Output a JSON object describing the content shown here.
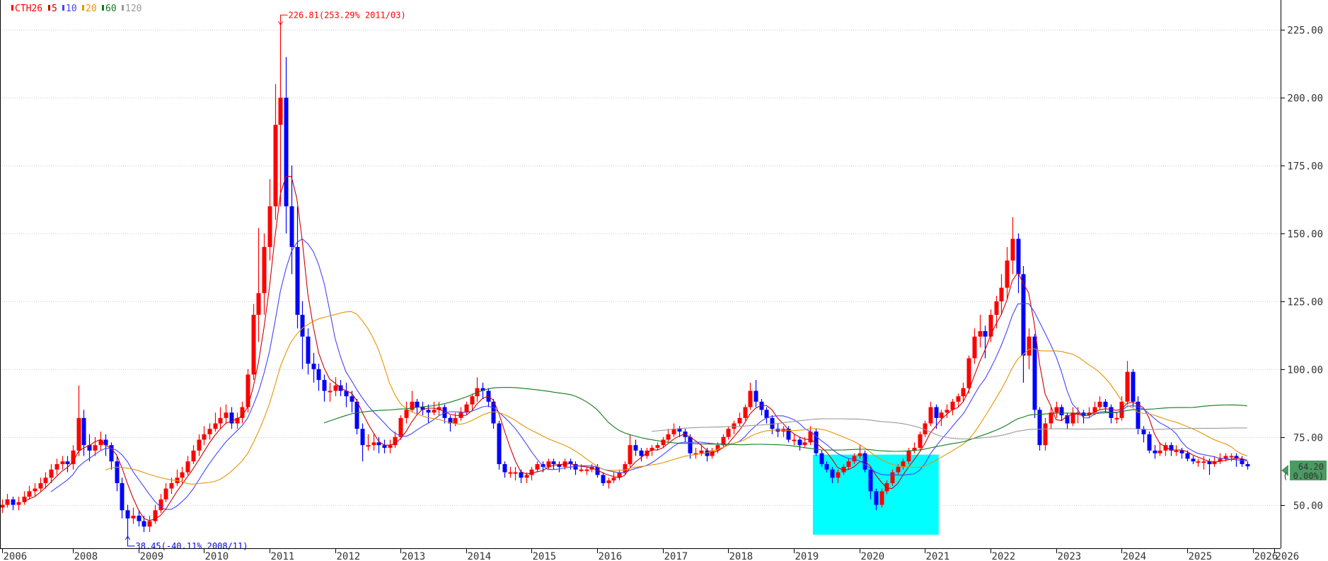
{
  "chart_data": {
    "type": "candlestick",
    "symbol": "CTH26",
    "interval": "monthly",
    "start": "2006/12",
    "up_color": "#ff0000",
    "down_color": "#0000ff",
    "legend": [
      {
        "label": "CTH26",
        "color": "#ff0000"
      },
      {
        "label": "5",
        "color": "#cc0000",
        "period": 5
      },
      {
        "label": "10",
        "color": "#4444ff",
        "period": 10
      },
      {
        "label": "20",
        "color": "#e69500",
        "period": 20
      },
      {
        "label": "60",
        "color": "#107a20",
        "period": 60
      },
      {
        "label": "120",
        "color": "#999999",
        "period": 120
      }
    ],
    "legend_placement": "top-left",
    "ylim": [
      34,
      236
    ],
    "y_ticks": [
      "225.00",
      "200.00",
      "175.00",
      "150.00",
      "125.00",
      "100.00",
      "75.00",
      "50.00"
    ],
    "x_ticks": [
      "2006",
      "2008",
      "2009",
      "2010",
      "2011",
      "2012",
      "2013",
      "2014",
      "2015",
      "2016",
      "2017",
      "2018",
      "2019",
      "2020",
      "2021",
      "2022",
      "2023",
      "2024",
      "2025",
      "2026",
      "2026"
    ],
    "grid": true,
    "annotations": {
      "high": {
        "text": "226.81(253.29% 2011/03)",
        "value": 226.81,
        "color": "#ff0000"
      },
      "low": {
        "text": "38.45(-40.11% 2008/11)",
        "value": 38.45,
        "color": "#0000ff"
      }
    },
    "highlight": {
      "from": "2019/05",
      "to": "2021/03",
      "ylim": [
        39,
        68.5
      ],
      "color": "#00ffff"
    },
    "last_price": {
      "value": "64.20",
      "change": "( 0.00%)",
      "color": "#4a9a62"
    },
    "ohlc": [
      [
        49,
        52,
        47,
        50
      ],
      [
        50,
        54,
        49,
        52
      ],
      [
        52,
        53,
        48,
        50
      ],
      [
        50,
        53,
        48,
        51
      ],
      [
        51,
        55,
        50,
        53
      ],
      [
        53,
        57,
        52,
        55
      ],
      [
        55,
        58,
        53,
        56
      ],
      [
        56,
        60,
        55,
        58
      ],
      [
        58,
        62,
        56,
        60
      ],
      [
        60,
        65,
        58,
        63
      ],
      [
        63,
        67,
        61,
        65
      ],
      [
        65,
        68,
        63,
        66
      ],
      [
        66,
        68,
        62,
        65
      ],
      [
        65,
        72,
        63,
        70
      ],
      [
        70,
        94,
        68,
        82
      ],
      [
        82,
        85,
        68,
        72
      ],
      [
        72,
        76,
        66,
        70
      ],
      [
        70,
        75,
        68,
        72
      ],
      [
        72,
        77,
        70,
        74
      ],
      [
        74,
        76,
        68,
        72
      ],
      [
        72,
        73,
        63,
        66
      ],
      [
        66,
        68,
        55,
        58
      ],
      [
        58,
        60,
        45,
        48
      ],
      [
        48,
        50,
        38.45,
        45
      ],
      [
        45,
        49,
        43,
        46
      ],
      [
        46,
        48,
        42,
        44
      ],
      [
        44,
        46,
        40,
        42
      ],
      [
        42,
        46,
        40,
        44
      ],
      [
        44,
        50,
        43,
        48
      ],
      [
        48,
        54,
        47,
        52
      ],
      [
        52,
        58,
        51,
        56
      ],
      [
        56,
        60,
        54,
        58
      ],
      [
        58,
        63,
        57,
        60
      ],
      [
        60,
        64,
        58,
        62
      ],
      [
        62,
        68,
        61,
        66
      ],
      [
        66,
        72,
        65,
        70
      ],
      [
        70,
        76,
        68,
        74
      ],
      [
        74,
        79,
        72,
        76
      ],
      [
        76,
        80,
        74,
        78
      ],
      [
        78,
        84,
        77,
        80
      ],
      [
        80,
        86,
        78,
        82
      ],
      [
        82,
        87,
        80,
        84
      ],
      [
        84,
        86,
        78,
        80
      ],
      [
        80,
        84,
        78,
        82
      ],
      [
        82,
        88,
        80,
        86
      ],
      [
        86,
        100,
        84,
        98
      ],
      [
        98,
        124,
        96,
        120
      ],
      [
        120,
        152,
        110,
        128
      ],
      [
        128,
        150,
        120,
        145
      ],
      [
        145,
        170,
        140,
        160
      ],
      [
        160,
        205,
        155,
        190
      ],
      [
        190,
        226.81,
        160,
        200
      ],
      [
        200,
        215,
        150,
        160
      ],
      [
        160,
        175,
        135,
        145
      ],
      [
        145,
        160,
        115,
        120
      ],
      [
        120,
        125,
        100,
        112
      ],
      [
        112,
        115,
        98,
        102
      ],
      [
        102,
        106,
        95,
        100
      ],
      [
        100,
        102,
        92,
        96
      ],
      [
        96,
        98,
        88,
        92
      ],
      [
        92,
        95,
        88,
        92
      ],
      [
        92,
        97,
        90,
        94
      ],
      [
        94,
        96,
        90,
        92
      ],
      [
        92,
        95,
        86,
        90
      ],
      [
        90,
        92,
        84,
        88
      ],
      [
        88,
        89,
        76,
        78
      ],
      [
        78,
        80,
        66,
        72
      ],
      [
        72,
        76,
        70,
        72
      ],
      [
        72,
        76,
        70,
        73
      ],
      [
        73,
        75,
        69,
        72
      ],
      [
        72,
        74,
        69,
        71
      ],
      [
        71,
        74,
        69,
        72
      ],
      [
        72,
        77,
        71,
        75
      ],
      [
        75,
        83,
        74,
        82
      ],
      [
        82,
        88,
        80,
        85
      ],
      [
        85,
        92,
        84,
        88
      ],
      [
        88,
        89,
        83,
        86
      ],
      [
        86,
        88,
        83,
        85
      ],
      [
        85,
        87,
        80,
        84
      ],
      [
        84,
        88,
        83,
        85
      ],
      [
        85,
        88,
        83,
        86
      ],
      [
        86,
        87,
        80,
        82
      ],
      [
        82,
        83,
        77,
        80
      ],
      [
        80,
        84,
        79,
        82
      ],
      [
        82,
        86,
        81,
        84
      ],
      [
        84,
        88,
        83,
        87
      ],
      [
        87,
        91,
        85,
        90
      ],
      [
        90,
        97,
        88,
        93
      ],
      [
        93,
        95,
        89,
        92
      ],
      [
        92,
        93,
        86,
        88
      ],
      [
        88,
        89,
        78,
        80
      ],
      [
        80,
        81,
        63,
        65
      ],
      [
        65,
        66,
        60,
        62
      ],
      [
        62,
        64,
        60,
        62
      ],
      [
        62,
        64,
        59,
        62
      ],
      [
        62,
        63,
        58,
        60
      ],
      [
        60,
        62,
        58,
        61
      ],
      [
        61,
        64,
        59,
        63
      ],
      [
        63,
        66,
        62,
        65
      ],
      [
        65,
        66,
        62,
        64
      ],
      [
        64,
        67,
        63,
        66
      ],
      [
        66,
        67,
        63,
        65
      ],
      [
        65,
        66,
        62,
        64
      ],
      [
        64,
        67,
        63,
        66
      ],
      [
        66,
        67,
        63,
        65
      ],
      [
        65,
        66,
        61,
        63
      ],
      [
        63,
        65,
        62,
        63
      ],
      [
        63,
        64,
        61,
        63
      ],
      [
        63,
        65,
        62,
        64
      ],
      [
        64,
        65,
        60,
        61
      ],
      [
        61,
        62,
        57,
        58
      ],
      [
        58,
        60,
        56,
        59
      ],
      [
        59,
        62,
        58,
        60
      ],
      [
        60,
        63,
        59,
        62
      ],
      [
        62,
        66,
        61,
        65
      ],
      [
        65,
        76,
        64,
        72
      ],
      [
        72,
        74,
        68,
        70
      ],
      [
        70,
        71,
        66,
        68
      ],
      [
        68,
        71,
        67,
        70
      ],
      [
        70,
        72,
        68,
        71
      ],
      [
        71,
        73,
        70,
        72
      ],
      [
        72,
        75,
        71,
        74
      ],
      [
        74,
        78,
        73,
        76
      ],
      [
        76,
        80,
        75,
        78
      ],
      [
        78,
        79,
        75,
        77
      ],
      [
        77,
        78,
        73,
        75
      ],
      [
        75,
        76,
        67,
        69
      ],
      [
        69,
        71,
        67,
        69
      ],
      [
        69,
        72,
        68,
        70
      ],
      [
        70,
        71,
        66,
        68
      ],
      [
        68,
        71,
        67,
        70
      ],
      [
        70,
        73,
        69,
        72
      ],
      [
        72,
        76,
        71,
        75
      ],
      [
        75,
        79,
        74,
        78
      ],
      [
        78,
        81,
        76,
        80
      ],
      [
        80,
        84,
        79,
        82
      ],
      [
        82,
        87,
        81,
        86
      ],
      [
        86,
        95,
        85,
        92
      ],
      [
        92,
        96,
        86,
        88
      ],
      [
        88,
        89,
        83,
        85
      ],
      [
        85,
        86,
        80,
        82
      ],
      [
        82,
        83,
        76,
        78
      ],
      [
        78,
        80,
        75,
        77
      ],
      [
        77,
        79,
        75,
        78
      ],
      [
        78,
        79,
        73,
        74
      ],
      [
        74,
        76,
        72,
        74
      ],
      [
        74,
        75,
        70,
        72
      ],
      [
        72,
        75,
        71,
        73
      ],
      [
        73,
        79,
        72,
        77
      ],
      [
        77,
        78,
        68,
        69
      ],
      [
        69,
        70,
        64,
        65
      ],
      [
        65,
        66,
        62,
        63
      ],
      [
        63,
        64,
        58,
        60
      ],
      [
        60,
        63,
        58,
        62
      ],
      [
        62,
        65,
        61,
        64
      ],
      [
        64,
        67,
        63,
        66
      ],
      [
        66,
        69,
        65,
        68
      ],
      [
        68,
        72,
        67,
        69
      ],
      [
        69,
        70,
        62,
        63
      ],
      [
        63,
        64,
        52,
        55
      ],
      [
        55,
        56,
        48,
        50
      ],
      [
        50,
        56,
        49,
        55
      ],
      [
        55,
        59,
        54,
        58
      ],
      [
        58,
        63,
        57,
        62
      ],
      [
        62,
        65,
        61,
        64
      ],
      [
        64,
        67,
        63,
        66
      ],
      [
        66,
        71,
        65,
        70
      ],
      [
        70,
        73,
        69,
        71
      ],
      [
        71,
        77,
        70,
        76
      ],
      [
        76,
        81,
        75,
        80
      ],
      [
        80,
        88,
        79,
        86
      ],
      [
        86,
        87,
        78,
        82
      ],
      [
        82,
        85,
        79,
        84
      ],
      [
        84,
        87,
        82,
        85
      ],
      [
        85,
        89,
        83,
        88
      ],
      [
        88,
        91,
        86,
        90
      ],
      [
        90,
        95,
        88,
        93
      ],
      [
        93,
        105,
        91,
        104
      ],
      [
        104,
        115,
        102,
        112
      ],
      [
        112,
        120,
        108,
        114
      ],
      [
        114,
        116,
        104,
        112
      ],
      [
        112,
        122,
        110,
        120
      ],
      [
        120,
        127,
        115,
        125
      ],
      [
        125,
        135,
        120,
        130
      ],
      [
        130,
        145,
        126,
        140
      ],
      [
        140,
        156,
        135,
        148
      ],
      [
        148,
        150,
        128,
        135
      ],
      [
        135,
        138,
        95,
        105
      ],
      [
        105,
        115,
        100,
        112
      ],
      [
        112,
        113,
        82,
        85
      ],
      [
        85,
        86,
        70,
        72
      ],
      [
        72,
        82,
        70,
        80
      ],
      [
        80,
        86,
        78,
        84
      ],
      [
        84,
        88,
        82,
        86
      ],
      [
        86,
        87,
        81,
        83
      ],
      [
        83,
        84,
        78,
        80
      ],
      [
        80,
        86,
        79,
        84
      ],
      [
        84,
        86,
        80,
        84
      ],
      [
        84,
        85,
        80,
        83
      ],
      [
        83,
        86,
        82,
        84
      ],
      [
        84,
        88,
        83,
        86
      ],
      [
        86,
        90,
        85,
        88
      ],
      [
        88,
        89,
        84,
        86
      ],
      [
        86,
        87,
        80,
        82
      ],
      [
        82,
        84,
        80,
        82
      ],
      [
        82,
        90,
        81,
        88
      ],
      [
        88,
        103,
        87,
        99
      ],
      [
        99,
        100,
        86,
        88
      ],
      [
        88,
        90,
        76,
        78
      ],
      [
        78,
        79,
        73,
        76
      ],
      [
        76,
        77,
        69,
        70
      ],
      [
        70,
        72,
        67,
        69
      ],
      [
        69,
        73,
        68,
        70
      ],
      [
        70,
        73,
        68,
        72
      ],
      [
        72,
        73,
        68,
        70
      ],
      [
        70,
        72,
        68,
        70
      ],
      [
        70,
        71,
        67,
        69
      ],
      [
        69,
        70,
        66,
        67
      ],
      [
        67,
        68,
        65,
        66
      ],
      [
        66,
        67,
        64,
        66
      ],
      [
        66,
        68,
        63,
        66
      ],
      [
        66,
        67,
        61,
        65
      ],
      [
        65,
        68,
        64,
        66
      ],
      [
        66,
        69,
        65,
        67
      ],
      [
        67,
        69,
        66,
        68
      ],
      [
        68,
        69,
        66,
        68
      ],
      [
        68,
        69,
        64,
        67
      ],
      [
        67,
        68,
        64,
        65
      ],
      [
        65,
        66,
        63,
        64.2
      ]
    ]
  }
}
